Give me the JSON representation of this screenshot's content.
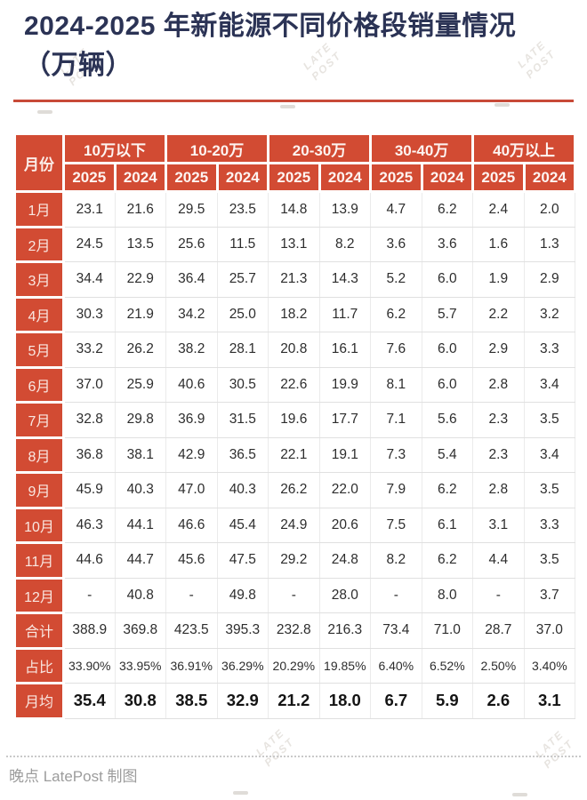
{
  "title": "2024-2025 年新能源不同价格段销量情况（万辆）",
  "footer": {
    "credit": "晚点 LatePost 制图"
  },
  "watermark": {
    "line1": "LATE",
    "line2": "POST"
  },
  "colors": {
    "accent_red": "#d24b33",
    "rule_red": "#c84a38",
    "title_navy": "#2b3355",
    "grid_gray": "#e0e0e0",
    "footer_gray": "#9c9c9c"
  },
  "chart_data": {
    "type": "table",
    "title": "2024-2025 年新能源不同价格段销量情况（万辆）",
    "unit": "万辆",
    "corner_header": "月份",
    "column_groups": [
      "10万以下",
      "10-20万",
      "20-30万",
      "30-40万",
      "40万以上"
    ],
    "sub_columns": [
      "2025",
      "2024"
    ],
    "rows": [
      {
        "label": "1月",
        "values": [
          "23.1",
          "21.6",
          "29.5",
          "23.5",
          "14.8",
          "13.9",
          "4.7",
          "6.2",
          "2.4",
          "2.0"
        ]
      },
      {
        "label": "2月",
        "values": [
          "24.5",
          "13.5",
          "25.6",
          "11.5",
          "13.1",
          "8.2",
          "3.6",
          "3.6",
          "1.6",
          "1.3"
        ]
      },
      {
        "label": "3月",
        "values": [
          "34.4",
          "22.9",
          "36.4",
          "25.7",
          "21.3",
          "14.3",
          "5.2",
          "6.0",
          "1.9",
          "2.9"
        ]
      },
      {
        "label": "4月",
        "values": [
          "30.3",
          "21.9",
          "34.2",
          "25.0",
          "18.2",
          "11.7",
          "6.2",
          "5.7",
          "2.2",
          "3.2"
        ]
      },
      {
        "label": "5月",
        "values": [
          "33.2",
          "26.2",
          "38.2",
          "28.1",
          "20.8",
          "16.1",
          "7.6",
          "6.0",
          "2.9",
          "3.3"
        ]
      },
      {
        "label": "6月",
        "values": [
          "37.0",
          "25.9",
          "40.6",
          "30.5",
          "22.6",
          "19.9",
          "8.1",
          "6.0",
          "2.8",
          "3.4"
        ]
      },
      {
        "label": "7月",
        "values": [
          "32.8",
          "29.8",
          "36.9",
          "31.5",
          "19.6",
          "17.7",
          "7.1",
          "5.6",
          "2.3",
          "3.5"
        ]
      },
      {
        "label": "8月",
        "values": [
          "36.8",
          "38.1",
          "42.9",
          "36.5",
          "22.1",
          "19.1",
          "7.3",
          "5.4",
          "2.3",
          "3.4"
        ]
      },
      {
        "label": "9月",
        "values": [
          "45.9",
          "40.3",
          "47.0",
          "40.3",
          "26.2",
          "22.0",
          "7.9",
          "6.2",
          "2.8",
          "3.5"
        ]
      },
      {
        "label": "10月",
        "values": [
          "46.3",
          "44.1",
          "46.6",
          "45.4",
          "24.9",
          "20.6",
          "7.5",
          "6.1",
          "3.1",
          "3.3"
        ]
      },
      {
        "label": "11月",
        "values": [
          "44.6",
          "44.7",
          "45.6",
          "47.5",
          "29.2",
          "24.8",
          "8.2",
          "6.2",
          "4.4",
          "3.5"
        ]
      },
      {
        "label": "12月",
        "values": [
          "-",
          "40.8",
          "-",
          "49.8",
          "-",
          "28.0",
          "-",
          "8.0",
          "-",
          "3.7"
        ]
      },
      {
        "label": "合计",
        "values": [
          "388.9",
          "369.8",
          "423.5",
          "395.3",
          "232.8",
          "216.3",
          "73.4",
          "71.0",
          "28.7",
          "37.0"
        ]
      },
      {
        "label": "占比",
        "percent": true,
        "values": [
          "33.90%",
          "33.95%",
          "36.91%",
          "36.29%",
          "20.29%",
          "19.85%",
          "6.40%",
          "6.52%",
          "2.50%",
          "3.40%"
        ]
      },
      {
        "label": "月均",
        "emphasis": true,
        "values": [
          "35.4",
          "30.8",
          "38.5",
          "32.9",
          "21.2",
          "18.0",
          "6.7",
          "5.9",
          "2.6",
          "3.1"
        ]
      }
    ]
  }
}
